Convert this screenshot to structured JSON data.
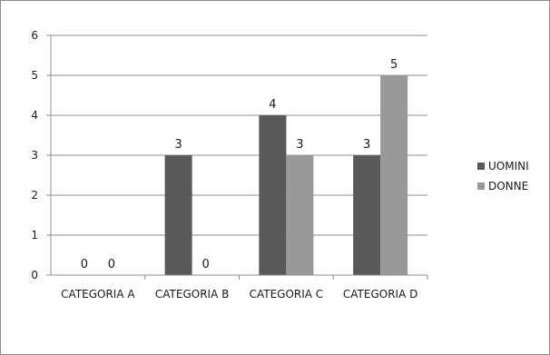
{
  "chart_data": {
    "type": "bar",
    "categories": [
      "CATEGORIA A",
      "CATEGORIA B",
      "CATEGORIA C",
      "CATEGORIA D"
    ],
    "series": [
      {
        "name": "UOMINI",
        "values": [
          0,
          3,
          4,
          3
        ],
        "color": "#595959"
      },
      {
        "name": "DONNE",
        "values": [
          0,
          0,
          3,
          5
        ],
        "color": "#999999"
      }
    ],
    "title": "",
    "xlabel": "",
    "ylabel": "",
    "ylim": [
      0,
      6
    ],
    "yticks": [
      "0",
      "1",
      "2",
      "3",
      "4",
      "5",
      "6"
    ],
    "grid": true,
    "legend": "right"
  }
}
